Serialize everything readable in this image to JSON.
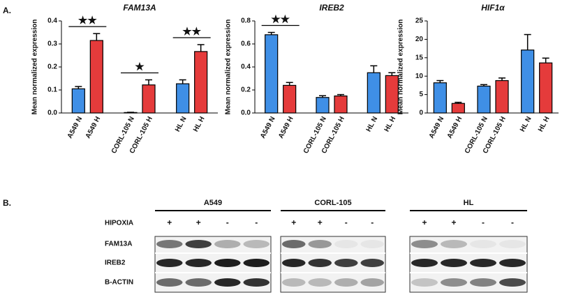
{
  "label_a": "A.",
  "chart_data": [
    {
      "type": "bar",
      "title": "FAM13A",
      "ylabel": "Mean normalized expression",
      "categories": [
        "A549 N",
        "A549 H",
        "CORL-105 N",
        "CORL-105 H",
        "HL N",
        "HL H"
      ],
      "values": [
        0.105,
        0.315,
        0.002,
        0.122,
        0.127,
        0.267
      ],
      "errors": [
        0.01,
        0.03,
        0.001,
        0.022,
        0.017,
        0.03
      ],
      "colors": [
        "#3f8fe6",
        "#e53b3b",
        "#3f8fe6",
        "#e53b3b",
        "#3f8fe6",
        "#e53b3b"
      ],
      "ylim": [
        0,
        0.4
      ],
      "yticks": [
        {
          "value": 0,
          "label": "0.0"
        },
        0.1,
        0.2,
        0.3,
        0.4
      ],
      "annotations": [
        {
          "text": "★★",
          "categories": [
            "A549 N",
            "A549 H"
          ]
        },
        {
          "text": "★",
          "categories": [
            "CORL-105 N",
            "CORL-105 H"
          ]
        },
        {
          "text": "★★",
          "categories": [
            "HL N",
            "HL H"
          ]
        }
      ]
    },
    {
      "type": "bar",
      "title": "IREB2",
      "ylabel": "Mean normalized expression",
      "categories": [
        "A549 N",
        "A549 H",
        "CORL-105 N",
        "CORL-105 H",
        "HL N",
        "HL H"
      ],
      "values": [
        0.68,
        0.24,
        0.135,
        0.148,
        0.35,
        0.325
      ],
      "errors": [
        0.02,
        0.025,
        0.015,
        0.012,
        0.06,
        0.025
      ],
      "colors": [
        "#3f8fe6",
        "#e53b3b",
        "#3f8fe6",
        "#e53b3b",
        "#3f8fe6",
        "#e53b3b"
      ],
      "ylim": [
        0,
        0.8
      ],
      "yticks": [
        {
          "value": 0,
          "label": "0.0"
        },
        0.2,
        0.4,
        0.6,
        0.8
      ],
      "annotations": [
        {
          "text": "★★",
          "categories": [
            "A549 N",
            "A549 H"
          ]
        }
      ]
    },
    {
      "type": "bar",
      "title": "HIF1α",
      "ylabel": "Mean normalized expression",
      "categories": [
        "A549 N",
        "A549 H",
        "CORL-105 N",
        "CORL-105 H",
        "HL N",
        "HL H"
      ],
      "values": [
        8.2,
        2.6,
        7.3,
        8.8,
        17.1,
        13.6
      ],
      "errors": [
        0.6,
        0.3,
        0.4,
        0.7,
        4.2,
        1.3
      ],
      "colors": [
        "#3f8fe6",
        "#e53b3b",
        "#3f8fe6",
        "#e53b3b",
        "#3f8fe6",
        "#e53b3b"
      ],
      "ylim": [
        0,
        25
      ],
      "yticks": [
        0,
        5,
        10,
        15,
        20,
        25
      ],
      "annotations": []
    }
  ],
  "blot": {
    "label": "B.",
    "groups": [
      "A549",
      "CORL-105",
      "HL"
    ],
    "condition": "HIPOXIA",
    "signs": [
      [
        "+",
        "+",
        "-",
        "-"
      ],
      [
        "+",
        "+",
        "-",
        "-"
      ],
      [
        "+",
        "+",
        "-",
        "-"
      ]
    ],
    "rows": [
      "FAM13A",
      "IREB2",
      "B-ACTIN"
    ]
  }
}
